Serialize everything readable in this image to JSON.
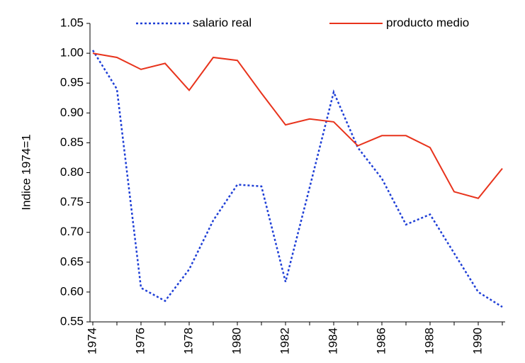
{
  "chart_data": {
    "type": "line",
    "y_label": "Indice 1974=1",
    "categories": [
      "1974",
      null,
      "1976",
      null,
      "1978",
      null,
      "1980",
      null,
      "1982",
      null,
      "1984",
      null,
      "1986",
      null,
      "1988",
      null,
      "1990",
      null
    ],
    "series": [
      {
        "name": "salario real",
        "color": "#1f3fd6",
        "dash": true,
        "values": [
          1.005,
          0.94,
          0.607,
          0.585,
          0.638,
          0.72,
          0.78,
          0.777,
          0.617,
          0.775,
          0.935,
          0.842,
          0.79,
          0.713,
          0.73,
          0.665,
          0.6,
          0.575
        ]
      },
      {
        "name": "producto medio",
        "color": "#e8331c",
        "dash": false,
        "values": [
          1.0,
          0.993,
          0.973,
          0.983,
          0.938,
          0.993,
          0.988,
          0.933,
          0.88,
          0.89,
          0.885,
          0.845,
          0.862,
          0.862,
          0.842,
          0.768,
          0.757,
          0.807
        ]
      }
    ],
    "ylim": [
      0.55,
      1.05
    ],
    "yticks": [
      0.55,
      {
        "value": 0.6,
        "label": "0.60"
      },
      0.65,
      {
        "value": 0.7,
        "label": "0.70"
      },
      0.75,
      {
        "value": 0.8,
        "label": "0.80"
      },
      0.85,
      {
        "value": 0.9,
        "label": "0.90"
      },
      0.95,
      {
        "value": 1.0,
        "label": "1.00"
      },
      1.05
    ],
    "legend": "top",
    "grid": false
  }
}
